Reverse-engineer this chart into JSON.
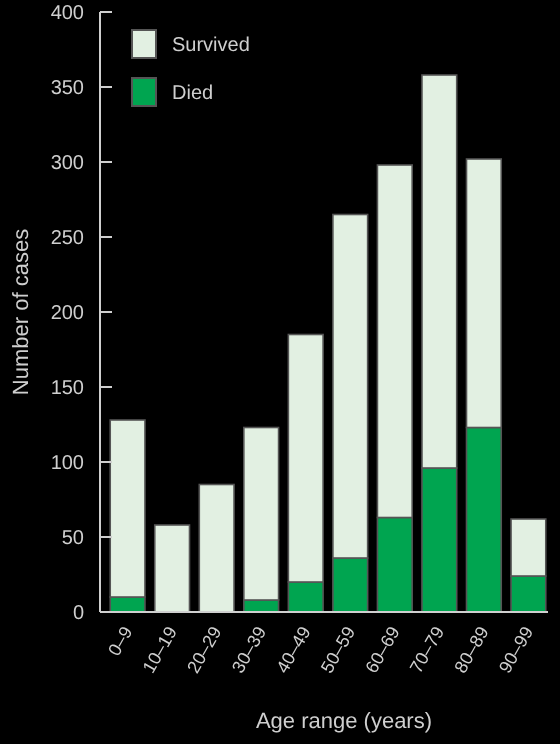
{
  "chart_data": {
    "type": "bar",
    "stacked": true,
    "xlabel": "Age range (years)",
    "ylabel": "Number of cases",
    "categories": [
      "0–9",
      "10–19",
      "20–29",
      "30–39",
      "40–49",
      "50–59",
      "60–69",
      "70–79",
      "80–89",
      "90–99"
    ],
    "series": [
      {
        "name": "Died",
        "color": "#00a550",
        "values": [
          10,
          null,
          null,
          8,
          20,
          36,
          63,
          96,
          123,
          24
        ]
      },
      {
        "name": "Survived",
        "color": "#e2f0e2",
        "values": [
          118,
          58,
          85,
          115,
          165,
          229,
          235,
          262,
          179,
          38
        ]
      }
    ],
    "ylim": [
      0,
      400
    ],
    "yticks": [
      0,
      50,
      100,
      150,
      200,
      250,
      300,
      350,
      400
    ],
    "legend": "top left"
  }
}
